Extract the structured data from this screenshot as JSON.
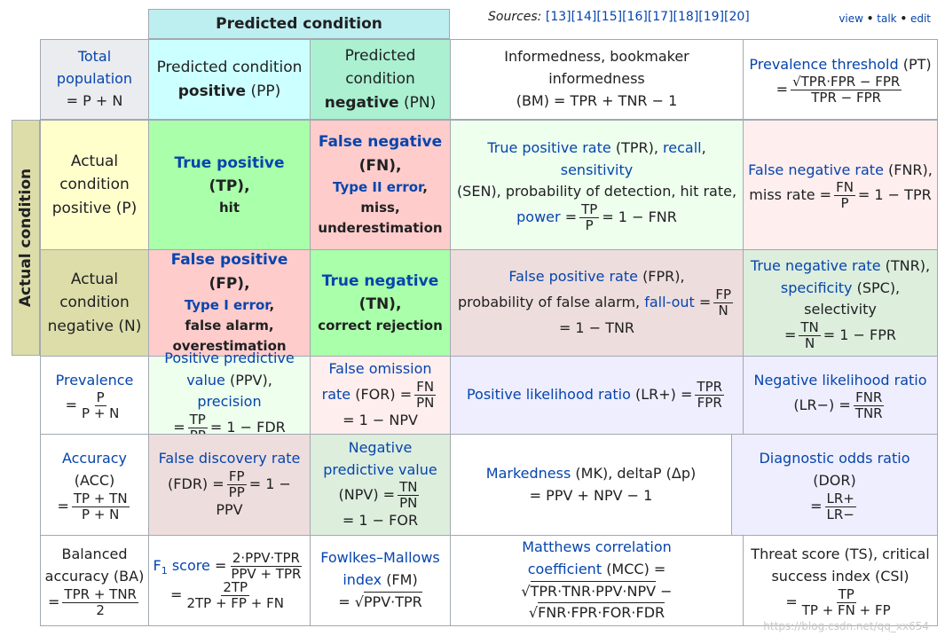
{
  "header": {
    "predicted_condition": "Predicted condition",
    "sources_label": "Sources:",
    "sources_refs": "[13][14][15][16][17][18][19][20]",
    "vte": [
      "view",
      "talk",
      "edit"
    ]
  },
  "row0": {
    "total_population": [
      "Total",
      "population"
    ],
    "total_formula": "= P + N",
    "pp_line1": "Predicted condition",
    "pp_bold": "positive",
    "pp_abbr": "(PP)",
    "pn_line1": "Predicted",
    "pn_line2": "condition",
    "pn_bold": "negative",
    "pn_abbr": "(PN)",
    "bm_line1": "Informedness, bookmaker informedness",
    "bm_line2": "(BM) = TPR + TNR − 1",
    "pt_link": "Prevalence threshold",
    "pt_abbr": "(PT)",
    "pt_eq": "=",
    "pt_num": "√TPR·FPR − FPR",
    "pt_den": "TPR − FPR"
  },
  "actual": {
    "vertical_label": "Actual condition",
    "positive": [
      "Actual",
      "condition",
      "positive (P)"
    ],
    "negative": [
      "Actual",
      "condition",
      "negative (N)"
    ]
  },
  "row1": {
    "tp_link": "True positive",
    "tp_abbr": "(TP),",
    "tp_sub": "hit",
    "fn_link": "False negative",
    "fn_abbr": "(FN),",
    "fn_err": "Type II error",
    "fn_sub1": "miss,",
    "fn_sub2": "underestimation",
    "tpr_link1": "True positive rate",
    "tpr_abbr": "(TPR),",
    "tpr_link2": "recall",
    "tpr_link3": "sensitivity",
    "tpr_line2": "(SEN), probability of detection, hit rate,",
    "tpr_power": "power",
    "tpr_eq": "=",
    "tpr_num": "TP",
    "tpr_den": "P",
    "tpr_tail": "= 1 − FNR",
    "fnr_link": "False negative rate",
    "fnr_abbr": "(FNR),",
    "fnr_line2": "miss rate =",
    "fnr_num": "FN",
    "fnr_den": "P",
    "fnr_tail": "= 1 − TPR"
  },
  "row2": {
    "fp_link": "False positive",
    "fp_abbr": "(FP),",
    "fp_err": "Type I error",
    "fp_sub1": "false alarm,",
    "fp_sub2": "overestimation",
    "tn_link": "True negative",
    "tn_abbr": "(TN),",
    "tn_sub": "correct rejection",
    "fpr_link": "False positive rate",
    "fpr_abbr": "(FPR),",
    "fpr_line2": "probability of false alarm,",
    "fpr_link2": "fall-out",
    "fpr_eq": "=",
    "fpr_num": "FP",
    "fpr_den": "N",
    "fpr_tail": "= 1 − TNR",
    "tnr_link": "True negative rate",
    "tnr_abbr": "(TNR),",
    "tnr_link2": "specificity",
    "tnr_line2": "(SPC), selectivity",
    "tnr_eq": "=",
    "tnr_num": "TN",
    "tnr_den": "N",
    "tnr_tail": "= 1 − FPR"
  },
  "row3": {
    "prev_link": "Prevalence",
    "prev_eq": "=",
    "prev_num": "P",
    "prev_den": "P + N",
    "ppv_link": "Positive predictive",
    "ppv_link_b": "value",
    "ppv_abbr": "(PPV),",
    "ppv_link2": "precision",
    "ppv_eq": "=",
    "ppv_num": "TP",
    "ppv_den": "PP",
    "ppv_tail": "= 1 − FDR",
    "for_link": "False omission",
    "for_link_b": "rate",
    "for_abbr": "(FOR) =",
    "for_num": "FN",
    "for_den": "PN",
    "for_tail": "= 1 − NPV",
    "lrp_link": "Positive likelihood ratio",
    "lrp_abbr": "(LR+) =",
    "lrp_num": "TPR",
    "lrp_den": "FPR",
    "lrn_link": "Negative likelihood ratio",
    "lrn_abbr": "(LR−) =",
    "lrn_num": "FNR",
    "lrn_den": "TNR"
  },
  "row4": {
    "acc_link": "Accuracy",
    "acc_abbr": "(ACC)",
    "acc_eq": "=",
    "acc_num": "TP + TN",
    "acc_den": "P + N",
    "fdr_link": "False discovery rate",
    "fdr_abbr": "(FDR) =",
    "fdr_num": "FP",
    "fdr_den": "PP",
    "fdr_tail": "= 1 − PPV",
    "npv_link": "Negative",
    "npv_link_b": "predictive value",
    "npv_abbr": "(NPV) =",
    "npv_num": "TN",
    "npv_den": "PN",
    "npv_tail": "= 1 − FOR",
    "mk_link": "Markedness",
    "mk_abbr": "(MK), deltaP (Δp)",
    "mk_formula": "= PPV + NPV − 1",
    "dor_link": "Diagnostic odds ratio",
    "dor_abbr": "(DOR)",
    "dor_eq": "=",
    "dor_num": "LR+",
    "dor_den": "LR−"
  },
  "row5": {
    "ba_line1": "Balanced",
    "ba_line2": "accuracy (BA)",
    "ba_eq": "=",
    "ba_num": "TPR + TNR",
    "ba_den": "2",
    "f1_link": "F",
    "f1_sub": "1",
    "f1_link_b": "score",
    "f1_eq": "=",
    "f1_num1": "2·PPV·TPR",
    "f1_den1": "PPV + TPR",
    "f1_eq2": "=",
    "f1_num2": "2TP",
    "f1_den2": "2TP + FP + FN",
    "fm_link": "Fowlkes–Mallows",
    "fm_link_b": "index",
    "fm_abbr": "(FM)",
    "fm_eq": "=",
    "fm_formula": "PPV·TPR",
    "mcc_link": "Matthews correlation",
    "mcc_link_b": "coefficient",
    "mcc_abbr": "(MCC) =",
    "mcc_line2": "TPR·TNR·PPV·NPV",
    "mcc_minus": "−",
    "mcc_line3": "FNR·FPR·FOR·FDR",
    "ts_line1": "Threat score (TS), critical",
    "ts_line2": "success index (CSI)",
    "ts_eq": "=",
    "ts_num": "TP",
    "ts_den": "TP + FN + FP"
  },
  "watermark": "https://blog.csdn.net/qq_xx654",
  "colors": {
    "link": "#0645ad",
    "border": "#a2a9b1"
  }
}
